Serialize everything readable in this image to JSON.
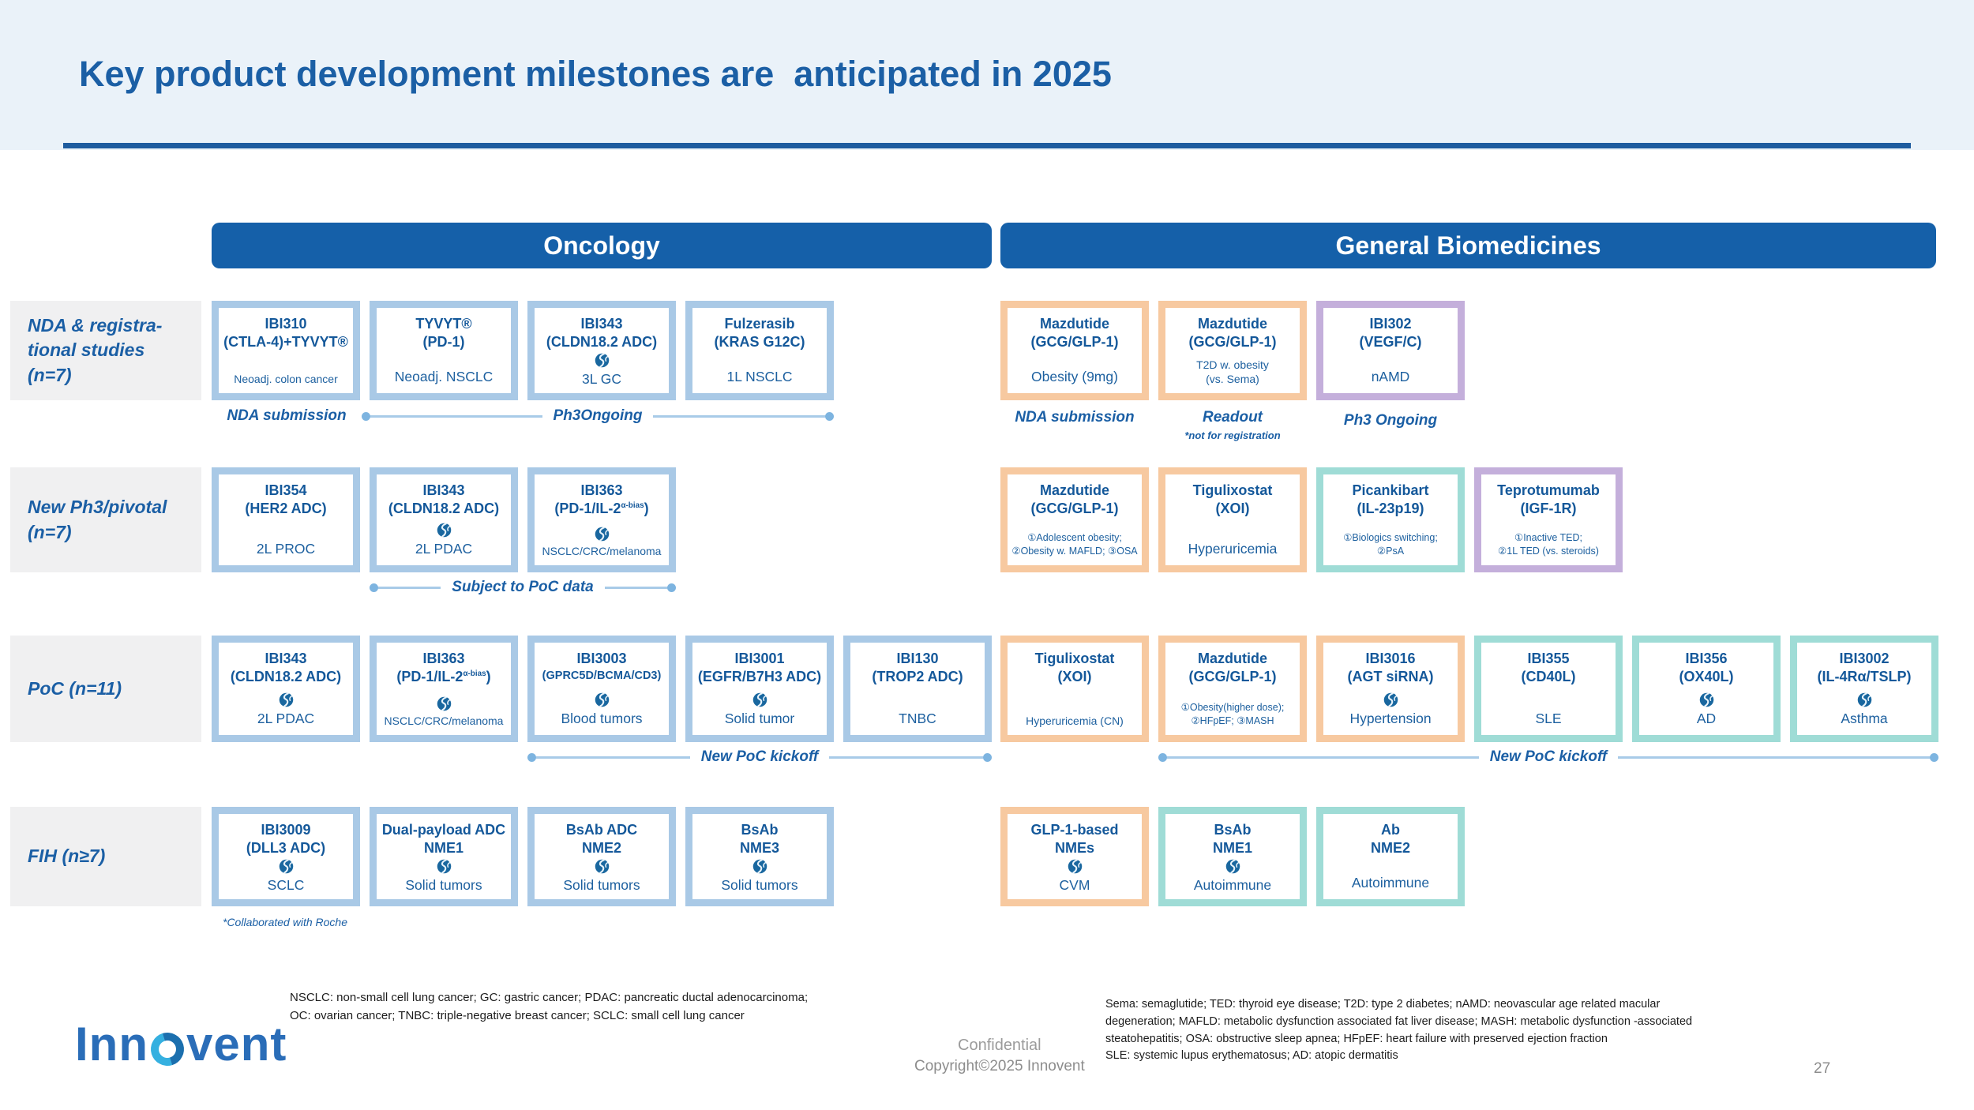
{
  "slide": {
    "title": "Key product development milestones are  anticipated in 2025",
    "page_number": "27",
    "confidential": "Confidential",
    "copyright": "Copyright©2025 Innovent"
  },
  "logo": {
    "name": "Innovent",
    "pre": "Inn",
    "post": "vent"
  },
  "colors": {
    "header_bar": "#1560a9",
    "title_text": "#1b5fa5",
    "band_bg": "#eaf2f9",
    "frame_blue": "#a9c9e6",
    "frame_orange": "#f7c9a0",
    "frame_teal": "#9fdcd6",
    "frame_purple": "#c4afdb",
    "product_text": "#14589a",
    "connector_line": "#a8cbe8",
    "connector_dot": "#7db4e0",
    "footer_gray": "#8d8d8d"
  },
  "columns": [
    {
      "label": "Oncology"
    },
    {
      "label": "General Biomedicines"
    }
  ],
  "rows": [
    {
      "label": "NDA  & registra-\ntional studies\n(n=7)",
      "oncology": [
        {
          "line1": "IBI310",
          "line2": "(CTLA-4)+TYVYT®",
          "ind": "Neoadj. colon cancer",
          "color": "blue"
        },
        {
          "line1": "TYVYT®",
          "line2": "(PD-1)",
          "ind": "Neoadj. NSCLC",
          "color": "blue"
        },
        {
          "line1": "IBI343",
          "line2": "(CLDN18.2 ADC)",
          "globe": true,
          "ind": "3L GC",
          "color": "blue"
        },
        {
          "line1": "Fulzerasib",
          "line2": "(KRAS G12C)",
          "ind": "1L NSCLC",
          "color": "blue"
        }
      ],
      "general": [
        {
          "line1": "Mazdutide",
          "line2": "(GCG/GLP-1)",
          "ind": "Obesity (9mg)",
          "color": "orange"
        },
        {
          "line1": "Mazdutide",
          "line2": "(GCG/GLP-1)",
          "ind": "T2D w. obesity\n(vs. Sema)",
          "color": "orange"
        },
        {
          "line1": "IBI302",
          "line2": "(VEGF/C)",
          "ind": "nAMD",
          "color": "purple"
        }
      ]
    },
    {
      "label": "New Ph3/pivotal\n(n=7)",
      "oncology": [
        {
          "line1": "IBI354",
          "line2": "(HER2 ADC)",
          "ind": "2L PROC",
          "color": "blue"
        },
        {
          "line1": "IBI343",
          "line2": "(CLDN18.2 ADC)",
          "globe": true,
          "ind": "2L PDAC",
          "color": "blue"
        },
        {
          "line1": "IBI363",
          "line2": "(PD-1/IL-2^{α-bias})",
          "globe": true,
          "ind": "NSCLC/CRC/melanoma",
          "color": "blue"
        }
      ],
      "general": [
        {
          "line1": "Mazdutide",
          "line2": "(GCG/GLP-1)",
          "ind": "①Adolescent obesity;\n②Obesity w. MAFLD; ③OSA",
          "color": "orange"
        },
        {
          "line1": "Tigulixostat",
          "line2": "(XOI)",
          "ind": "Hyperuricemia",
          "color": "orange"
        },
        {
          "line1": "Picankibart",
          "line2": "(IL-23p19)",
          "ind": "①Biologics switching;\n②PsA",
          "color": "teal"
        },
        {
          "line1": "Teprotumumab",
          "line2": "(IGF-1R)",
          "ind": "①Inactive TED;\n②1L TED (vs. steroids)",
          "color": "purple"
        }
      ]
    },
    {
      "label": "PoC (n=11)",
      "oncology": [
        {
          "line1": "IBI343",
          "line2": "(CLDN18.2 ADC)",
          "globe": true,
          "ind": "2L PDAC",
          "color": "blue"
        },
        {
          "line1": "IBI363",
          "line2": "(PD-1/IL-2^{α-bias})",
          "globe": true,
          "ind": "NSCLC/CRC/melanoma",
          "color": "blue"
        },
        {
          "line1": "IBI3003",
          "line2": "(GPRC5D/BCMA/CD3)",
          "globe": true,
          "ind": "Blood tumors",
          "color": "blue"
        },
        {
          "line1": "IBI3001",
          "line2": "(EGFR/B7H3 ADC)",
          "globe": true,
          "ind": "Solid tumor",
          "color": "blue"
        },
        {
          "line1": "IBI130",
          "line2": "(TROP2 ADC)",
          "ind": "TNBC",
          "color": "blue"
        }
      ],
      "general": [
        {
          "line1": "Tigulixostat",
          "line2": "(XOI)",
          "ind": "Hyperuricemia (CN)",
          "color": "orange"
        },
        {
          "line1": "Mazdutide",
          "line2": "(GCG/GLP-1)",
          "ind": "①Obesity(higher dose);\n②HFpEF; ③MASH",
          "color": "orange"
        },
        {
          "line1": "IBI3016",
          "line2": "(AGT siRNA)",
          "globe": true,
          "ind": "Hypertension",
          "color": "orange"
        },
        {
          "line1": "IBI355",
          "line2": "(CD40L)",
          "ind": "SLE",
          "color": "teal"
        },
        {
          "line1": "IBI356",
          "line2": "(OX40L)",
          "globe": true,
          "ind": "AD",
          "color": "teal"
        },
        {
          "line1": "IBI3002",
          "line2": "(IL-4Rα/TSLP)",
          "globe": true,
          "ind": "Asthma",
          "color": "teal"
        }
      ]
    },
    {
      "label": "FIH (n≥7)",
      "oncology": [
        {
          "line1": "IBI3009",
          "line2": "(DLL3 ADC)",
          "globe": true,
          "ind": "SCLC",
          "color": "blue"
        },
        {
          "line1": "Dual-payload ADC",
          "line2": "NME1",
          "globe": true,
          "ind": "Solid tumors",
          "color": "blue"
        },
        {
          "line1": "BsAb ADC",
          "line2": "NME2",
          "globe": true,
          "ind": "Solid tumors",
          "color": "blue"
        },
        {
          "line1": "BsAb",
          "line2": "NME3",
          "globe": true,
          "ind": "Solid tumors",
          "color": "blue"
        }
      ],
      "general": [
        {
          "line1": "GLP-1-based",
          "line2": "NMEs",
          "globe": true,
          "ind": "CVM",
          "color": "orange"
        },
        {
          "line1": "BsAb",
          "line2": "NME1",
          "globe": true,
          "ind": "Autoimmune",
          "color": "teal"
        },
        {
          "line1": "Ab",
          "line2": "NME2",
          "ind": "Autoimmune",
          "color": "teal"
        }
      ]
    }
  ],
  "milestones": {
    "r1_onc": {
      "left": "NDA submission",
      "mid": "Ph3Ongoing"
    },
    "r1_gen": [
      {
        "label": "NDA submission"
      },
      {
        "label": "Readout",
        "note": "*not for registration"
      },
      {
        "label": "Ph3 Ongoing"
      }
    ],
    "r2_onc": "Subject to PoC data",
    "r3_onc": "New PoC kickoff",
    "r3_gen": "New PoC kickoff",
    "r4_onc_note": "*Collaborated with Roche"
  },
  "footnotes": {
    "oncology": "NSCLC: non-small cell lung cancer; GC: gastric cancer; PDAC: pancreatic ductal adenocarcinoma;\nOC: ovarian cancer; TNBC: triple-negative breast cancer; SCLC: small cell lung cancer",
    "general": "Sema: semaglutide; TED: thyroid eye disease; T2D: type 2 diabetes; nAMD: neovascular age related macular\ndegeneration; MAFLD: metabolic dysfunction associated fat liver disease; MASH: metabolic dysfunction  -associated\nsteatohepatitis; OSA: obstructive sleep apnea; HFpEF: heart failure with preserved ejection fraction\nSLE: systemic lupus erythematosus; AD: atopic dermatitis"
  }
}
